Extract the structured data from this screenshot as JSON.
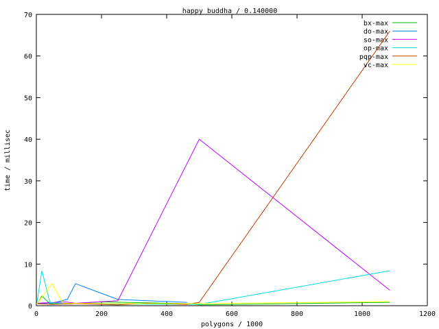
{
  "chart_data": {
    "type": "line",
    "title": "happy buddha / 0.140000",
    "xlabel": "polygons / 1000",
    "ylabel": "time / millisec",
    "xlim": [
      0,
      1200
    ],
    "ylim": [
      0,
      70
    ],
    "xticks": [
      0,
      200,
      400,
      600,
      800,
      1000,
      1200
    ],
    "yticks": [
      0,
      10,
      20,
      30,
      40,
      50,
      60,
      70
    ],
    "grid": false,
    "legend": "top-right",
    "series": [
      {
        "name": "bx-max",
        "color": "#00c000",
        "x": [
          1,
          17,
          42,
          90,
          200,
          340,
          460,
          500,
          1085
        ],
        "y": [
          0.3,
          2.3,
          0.5,
          0.4,
          0.9,
          0.7,
          0.5,
          0.2,
          0.8
        ]
      },
      {
        "name": "do-max",
        "color": "#0080ff",
        "x": [
          1,
          50,
          95,
          120,
          250,
          340,
          463
        ],
        "y": [
          0.5,
          0.65,
          1.5,
          5.3,
          1.5,
          1.2,
          0.8
        ]
      },
      {
        "name": "so-max",
        "color": "#c000ff",
        "x": [
          1,
          90,
          120,
          250,
          500,
          1085
        ],
        "y": [
          0.6,
          0.9,
          0.6,
          1.2,
          40,
          3.7
        ]
      },
      {
        "name": "op-max",
        "color": "#00e0e0",
        "x": [
          1,
          17,
          42,
          90,
          250,
          500,
          1085
        ],
        "y": [
          0.4,
          8.4,
          0.7,
          0.6,
          0.4,
          0.3,
          8.4
        ]
      },
      {
        "name": "pqp-max",
        "color": "#c04000",
        "x": [
          1,
          45,
          120,
          250,
          340,
          460,
          500,
          1085
        ],
        "y": [
          0.5,
          0.3,
          0.5,
          0.2,
          0.6,
          0.3,
          0.8,
          66
        ]
      },
      {
        "name": "vc-max",
        "color": "#ffff00",
        "x": [
          1,
          48,
          82,
          250,
          500,
          1085
        ],
        "y": [
          0.4,
          5.3,
          0.6,
          0.5,
          0.5,
          1.0
        ]
      }
    ]
  }
}
